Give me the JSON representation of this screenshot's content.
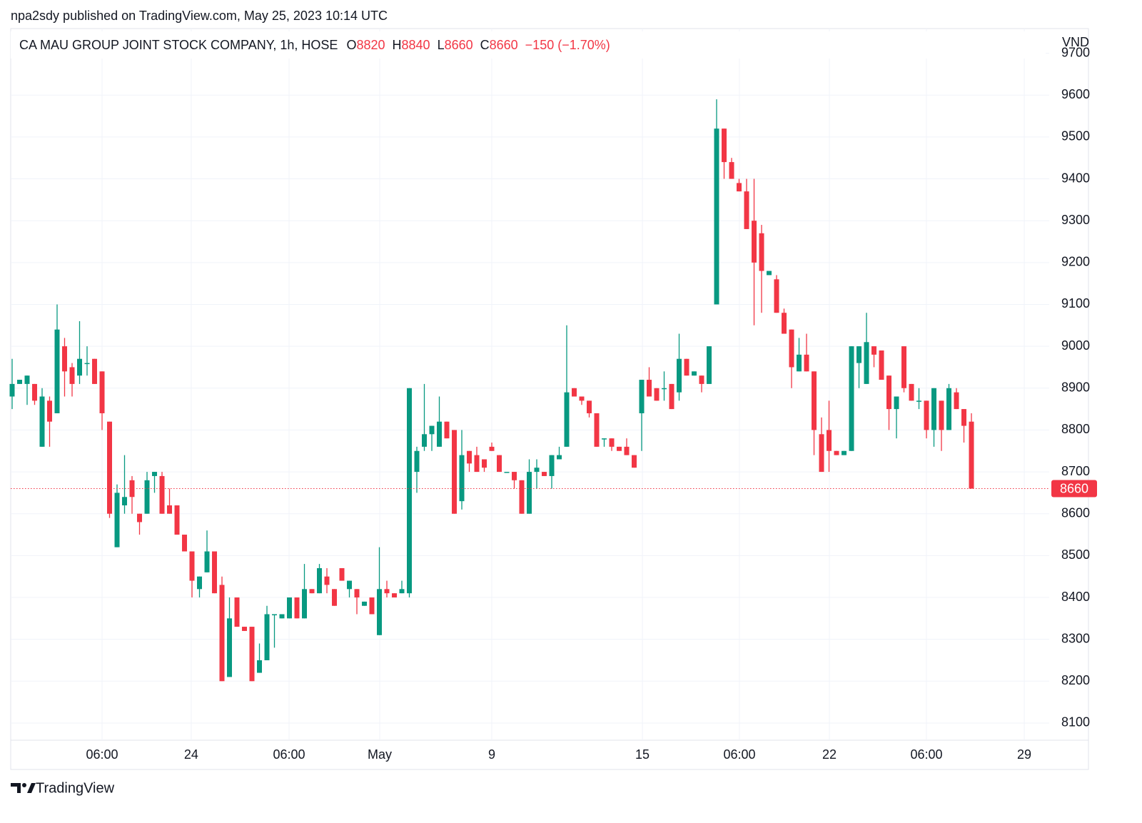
{
  "header": {
    "published": "npa2sdy published on TradingView.com, May 25, 2023 10:14 UTC"
  },
  "footer": {
    "brand": "TradingView"
  },
  "chart_data": {
    "type": "candlestick",
    "title": "CA MAU GROUP JOINT STOCK COMPANY, 1h, HOSE",
    "ohlc": [
      {
        "label": "O",
        "value": 8820
      },
      {
        "label": "H",
        "value": 8840
      },
      {
        "label": "L",
        "value": 8660
      },
      {
        "label": "C",
        "value": 8660
      }
    ],
    "change": "−150 (−1.70%)",
    "y_axis_label": "VND",
    "last_price": 8660,
    "up_color": "#089981",
    "down_color": "#f23645",
    "grid": true,
    "ylim": [
      8059,
      9759
    ],
    "yticks": [
      8100,
      8200,
      8300,
      8400,
      8500,
      8600,
      8700,
      8800,
      8900,
      9000,
      9100,
      9200,
      9300,
      9400,
      9500,
      9600,
      9700
    ],
    "xlim": [
      -0.19,
      138.38
    ],
    "xticks": [
      {
        "value": 12,
        "label": "06:00"
      },
      {
        "value": 23.9,
        "label": "24"
      },
      {
        "value": 36.95,
        "label": "06:00"
      },
      {
        "value": 49.05,
        "label": "May"
      },
      {
        "value": 64,
        "label": "9"
      },
      {
        "value": 84.1,
        "label": "15"
      },
      {
        "value": 97.05,
        "label": "06:00"
      },
      {
        "value": 109.05,
        "label": "22"
      },
      {
        "value": 122,
        "label": "06:00"
      },
      {
        "value": 135.05,
        "label": "29"
      }
    ],
    "open": [
      8880,
      8910,
      8910,
      8910,
      8760,
      8870,
      8840,
      9000,
      8950,
      8930,
      8960,
      8970,
      8940,
      8820,
      8520,
      8620,
      8680,
      8600,
      8600,
      8690,
      8690,
      8620,
      8620,
      8550,
      8510,
      8420,
      8460,
      8510,
      8430,
      8210,
      8400,
      8330,
      8330,
      8220,
      8250,
      8360,
      8350,
      8350,
      8400,
      8350,
      8420,
      8410,
      8450,
      8420,
      8470,
      8420,
      8420,
      8380,
      8400,
      8310,
      8420,
      8410,
      8410,
      8410,
      8700,
      8760,
      8790,
      8760,
      8820,
      8800,
      8630,
      8750,
      8740,
      8730,
      8760,
      8740,
      8700,
      8700,
      8680,
      8600,
      8700,
      8700,
      8690,
      8730,
      8760,
      8900,
      8880,
      8870,
      8840,
      8780,
      8780,
      8760,
      8760,
      8740,
      8840,
      8920,
      8900,
      8900,
      8910,
      8890,
      8970,
      8930,
      8930,
      8910,
      9100,
      9520,
      9440,
      9390,
      9370,
      9300,
      9270,
      9170,
      9160,
      9080,
      9040,
      8940,
      8980,
      8940,
      8790,
      8800,
      8750,
      8740,
      8750,
      8960,
      8910,
      9000,
      8990,
      8930,
      8850,
      9000,
      8910,
      8870,
      8870,
      8800,
      8870,
      8800,
      8890,
      8850,
      8820
    ],
    "high": [
      8970,
      8920,
      8930,
      8910,
      8900,
      8880,
      9100,
      9020,
      8960,
      9060,
      9000,
      8970,
      8940,
      8820,
      8670,
      8740,
      8690,
      8600,
      8700,
      8700,
      8700,
      8660,
      8620,
      8550,
      8510,
      8450,
      8560,
      8510,
      8450,
      8400,
      8400,
      8330,
      8330,
      8290,
      8380,
      8360,
      8360,
      8400,
      8400,
      8480,
      8420,
      8480,
      8470,
      8420,
      8470,
      8440,
      8420,
      8390,
      8400,
      8520,
      8440,
      8410,
      8440,
      8900,
      8760,
      8910,
      8810,
      8880,
      8820,
      8800,
      8800,
      8750,
      8760,
      8730,
      8770,
      8740,
      8700,
      8700,
      8680,
      8730,
      8730,
      8700,
      8740,
      8760,
      9050,
      8900,
      8880,
      8870,
      8840,
      8780,
      8780,
      8760,
      8780,
      8740,
      8920,
      8950,
      8900,
      8940,
      8910,
      9030,
      8970,
      8940,
      8930,
      9000,
      9590,
      9520,
      9450,
      9400,
      9400,
      9400,
      9290,
      9180,
      9170,
      9090,
      9040,
      9020,
      9030,
      8940,
      8830,
      8870,
      8750,
      8750,
      9000,
      9000,
      9080,
      9000,
      8990,
      8930,
      8880,
      9000,
      8910,
      8900,
      8870,
      8900,
      8870,
      8910,
      8900,
      8850,
      8840
    ],
    "low": [
      8850,
      8910,
      8860,
      8860,
      8760,
      8760,
      8840,
      8880,
      8880,
      8910,
      8930,
      8910,
      8800,
      8590,
      8520,
      8600,
      8600,
      8550,
      8600,
      8650,
      8600,
      8600,
      8550,
      8510,
      8400,
      8400,
      8460,
      8410,
      8200,
      8210,
      8330,
      8320,
      8200,
      8220,
      8250,
      8280,
      8350,
      8350,
      8350,
      8350,
      8410,
      8410,
      8410,
      8380,
      8440,
      8400,
      8360,
      8380,
      8360,
      8310,
      8400,
      8400,
      8410,
      8400,
      8650,
      8750,
      8750,
      8760,
      8780,
      8600,
      8610,
      8700,
      8700,
      8700,
      8750,
      8700,
      8700,
      8660,
      8600,
      8600,
      8660,
      8690,
      8660,
      8730,
      8760,
      8880,
      8860,
      8830,
      8760,
      8760,
      8750,
      8750,
      8740,
      8710,
      8750,
      8880,
      8870,
      8870,
      8850,
      8870,
      8930,
      8930,
      8890,
      8910,
      9100,
      9400,
      9400,
      9370,
      9280,
      9050,
      9080,
      9170,
      9080,
      9030,
      8900,
      8940,
      8940,
      8740,
      8700,
      8700,
      8740,
      8740,
      8750,
      8900,
      8910,
      8950,
      8920,
      8800,
      8780,
      8890,
      8870,
      8850,
      8780,
      8760,
      8750,
      8800,
      8850,
      8770,
      8660
    ],
    "close": [
      8910,
      8920,
      8930,
      8870,
      8880,
      8820,
      9040,
      8940,
      8910,
      8970,
      8960,
      8910,
      8840,
      8600,
      8650,
      8640,
      8640,
      8580,
      8680,
      8700,
      8600,
      8600,
      8550,
      8510,
      8440,
      8450,
      8510,
      8410,
      8200,
      8350,
      8330,
      8320,
      8200,
      8250,
      8360,
      8360,
      8360,
      8400,
      8350,
      8420,
      8410,
      8470,
      8430,
      8380,
      8440,
      8440,
      8400,
      8390,
      8360,
      8420,
      8410,
      8400,
      8420,
      8900,
      8750,
      8790,
      8810,
      8820,
      8780,
      8600,
      8740,
      8720,
      8700,
      8710,
      8750,
      8700,
      8700,
      8680,
      8600,
      8700,
      8710,
      8690,
      8740,
      8740,
      8890,
      8880,
      8870,
      8840,
      8760,
      8780,
      8760,
      8750,
      8740,
      8710,
      8920,
      8880,
      8870,
      8900,
      8850,
      8970,
      8930,
      8940,
      8910,
      9000,
      9520,
      9440,
      9400,
      9370,
      9280,
      9200,
      9180,
      9180,
      9080,
      9030,
      8950,
      8980,
      8940,
      8800,
      8700,
      8750,
      8740,
      8750,
      9000,
      9000,
      9010,
      8980,
      8920,
      8850,
      8880,
      8900,
      8870,
      8870,
      8800,
      8900,
      8800,
      8900,
      8850,
      8810,
      8660
    ]
  }
}
